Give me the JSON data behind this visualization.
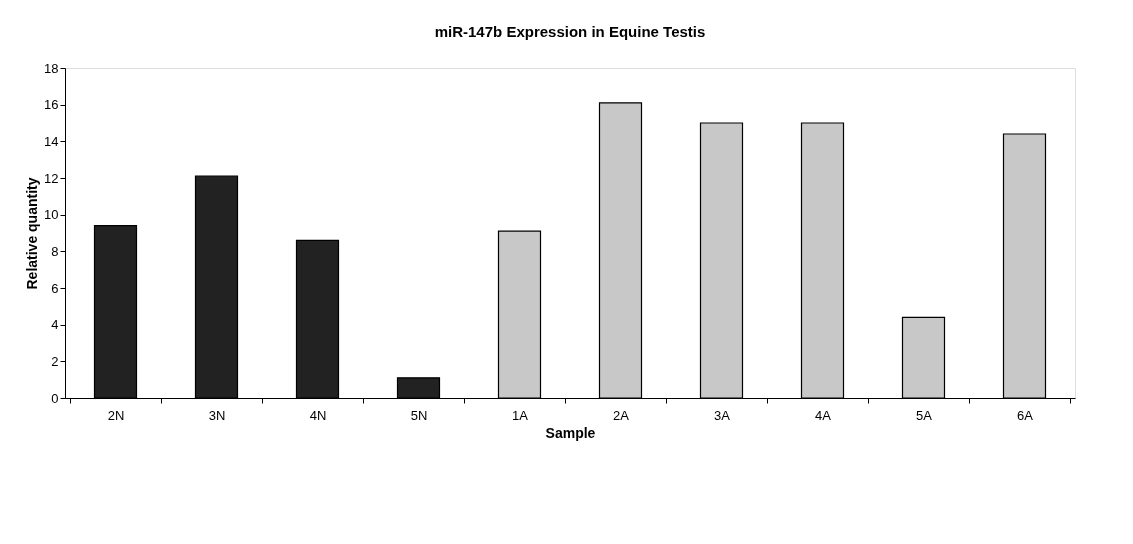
{
  "chart_data": {
    "type": "bar",
    "title": "miR-147b Expression in Equine Testis",
    "xlabel": "Sample",
    "ylabel": "Relative quantity",
    "categories": [
      "2N",
      "3N",
      "4N",
      "5N",
      "1A",
      "2A",
      "3A",
      "4A",
      "5A",
      "6A"
    ],
    "values": [
      9.4,
      12.1,
      8.6,
      1.1,
      9.1,
      16.1,
      15.0,
      15.0,
      4.4,
      14.4
    ],
    "colors": [
      "#222222",
      "#222222",
      "#222222",
      "#222222",
      "#c8c8c8",
      "#c8c8c8",
      "#c8c8c8",
      "#c8c8c8",
      "#c8c8c8",
      "#c8c8c8"
    ],
    "ylim": [
      0,
      18
    ],
    "yticks": [
      0,
      2,
      4,
      6,
      8,
      10,
      12,
      14,
      16,
      18
    ],
    "grid": false,
    "legend": false
  }
}
